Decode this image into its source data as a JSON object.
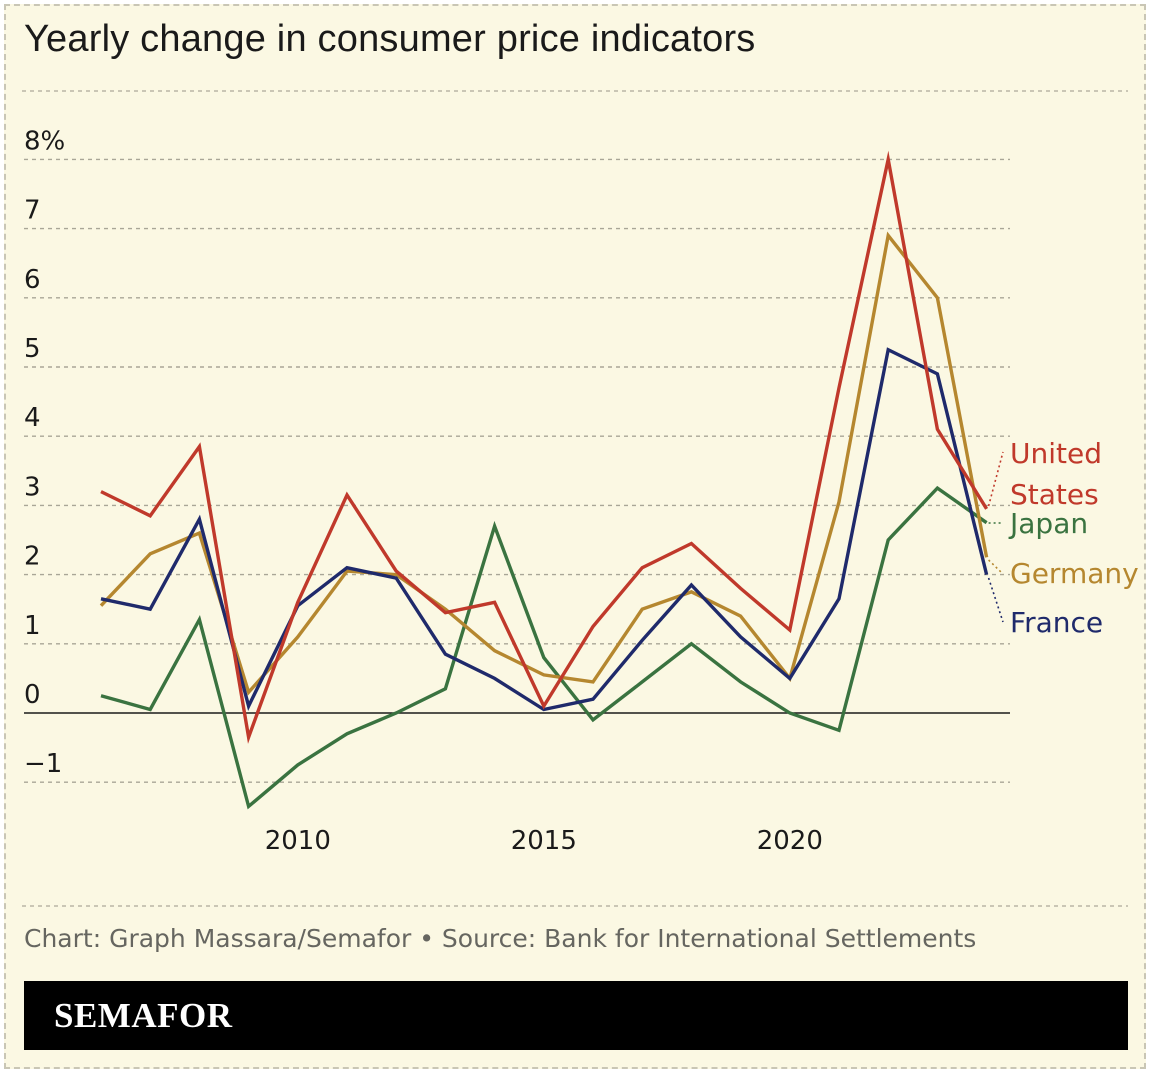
{
  "title": "Yearly change in consumer price indicators",
  "source": "Chart: Graph Massara/Semafor • Source: Bank for International Settlements",
  "brand": "SEMAFOR",
  "chart_data": {
    "type": "line",
    "title": "Yearly change in consumer price indicators",
    "xlabel": "",
    "ylabel": "",
    "x": [
      2006,
      2007,
      2008,
      2009,
      2010,
      2011,
      2012,
      2013,
      2014,
      2015,
      2016,
      2017,
      2018,
      2019,
      2020,
      2021,
      2022,
      2023,
      2024
    ],
    "xlim": [
      2005.9,
      2024.4
    ],
    "ylim": [
      -1.5,
      8
    ],
    "x_ticks": [
      2010,
      2015,
      2020
    ],
    "x_tick_labels": [
      "2010",
      "2015",
      "2020"
    ],
    "y_ticks": [
      -1,
      0,
      1,
      2,
      3,
      4,
      5,
      6,
      7,
      8
    ],
    "y_tick_labels": [
      "−1",
      "0",
      "1",
      "2",
      "3",
      "4",
      "5",
      "6",
      "7",
      "8%"
    ],
    "grid": true,
    "legend": "direct labels at right end of lines",
    "series": [
      {
        "name": "United States",
        "label_lines": [
          "United",
          "States"
        ],
        "color": "#c0392b",
        "values": [
          3.2,
          2.85,
          3.85,
          -0.35,
          1.6,
          3.15,
          2.05,
          1.45,
          1.6,
          0.1,
          1.25,
          2.1,
          2.45,
          1.8,
          1.2,
          4.7,
          8.0,
          4.1,
          2.95
        ]
      },
      {
        "name": "Japan",
        "label_lines": [
          "Japan"
        ],
        "color": "#3a7340",
        "values": [
          0.25,
          0.05,
          1.35,
          -1.35,
          -0.75,
          -0.3,
          0.0,
          0.35,
          2.7,
          0.8,
          -0.1,
          0.45,
          1.0,
          0.45,
          0.0,
          -0.25,
          2.5,
          3.25,
          2.75
        ]
      },
      {
        "name": "Germany",
        "label_lines": [
          "Germany"
        ],
        "color": "#b5872f",
        "values": [
          1.55,
          2.3,
          2.6,
          0.3,
          1.1,
          2.05,
          2.0,
          1.5,
          0.9,
          0.55,
          0.45,
          1.5,
          1.75,
          1.4,
          0.5,
          3.05,
          6.9,
          6.0,
          2.25
        ]
      },
      {
        "name": "France",
        "label_lines": [
          "France"
        ],
        "color": "#1f2a6b",
        "values": [
          1.65,
          1.5,
          2.8,
          0.1,
          1.55,
          2.1,
          1.95,
          0.85,
          0.5,
          0.05,
          0.2,
          1.05,
          1.85,
          1.1,
          0.5,
          1.65,
          5.25,
          4.9,
          2.0
        ]
      }
    ]
  }
}
